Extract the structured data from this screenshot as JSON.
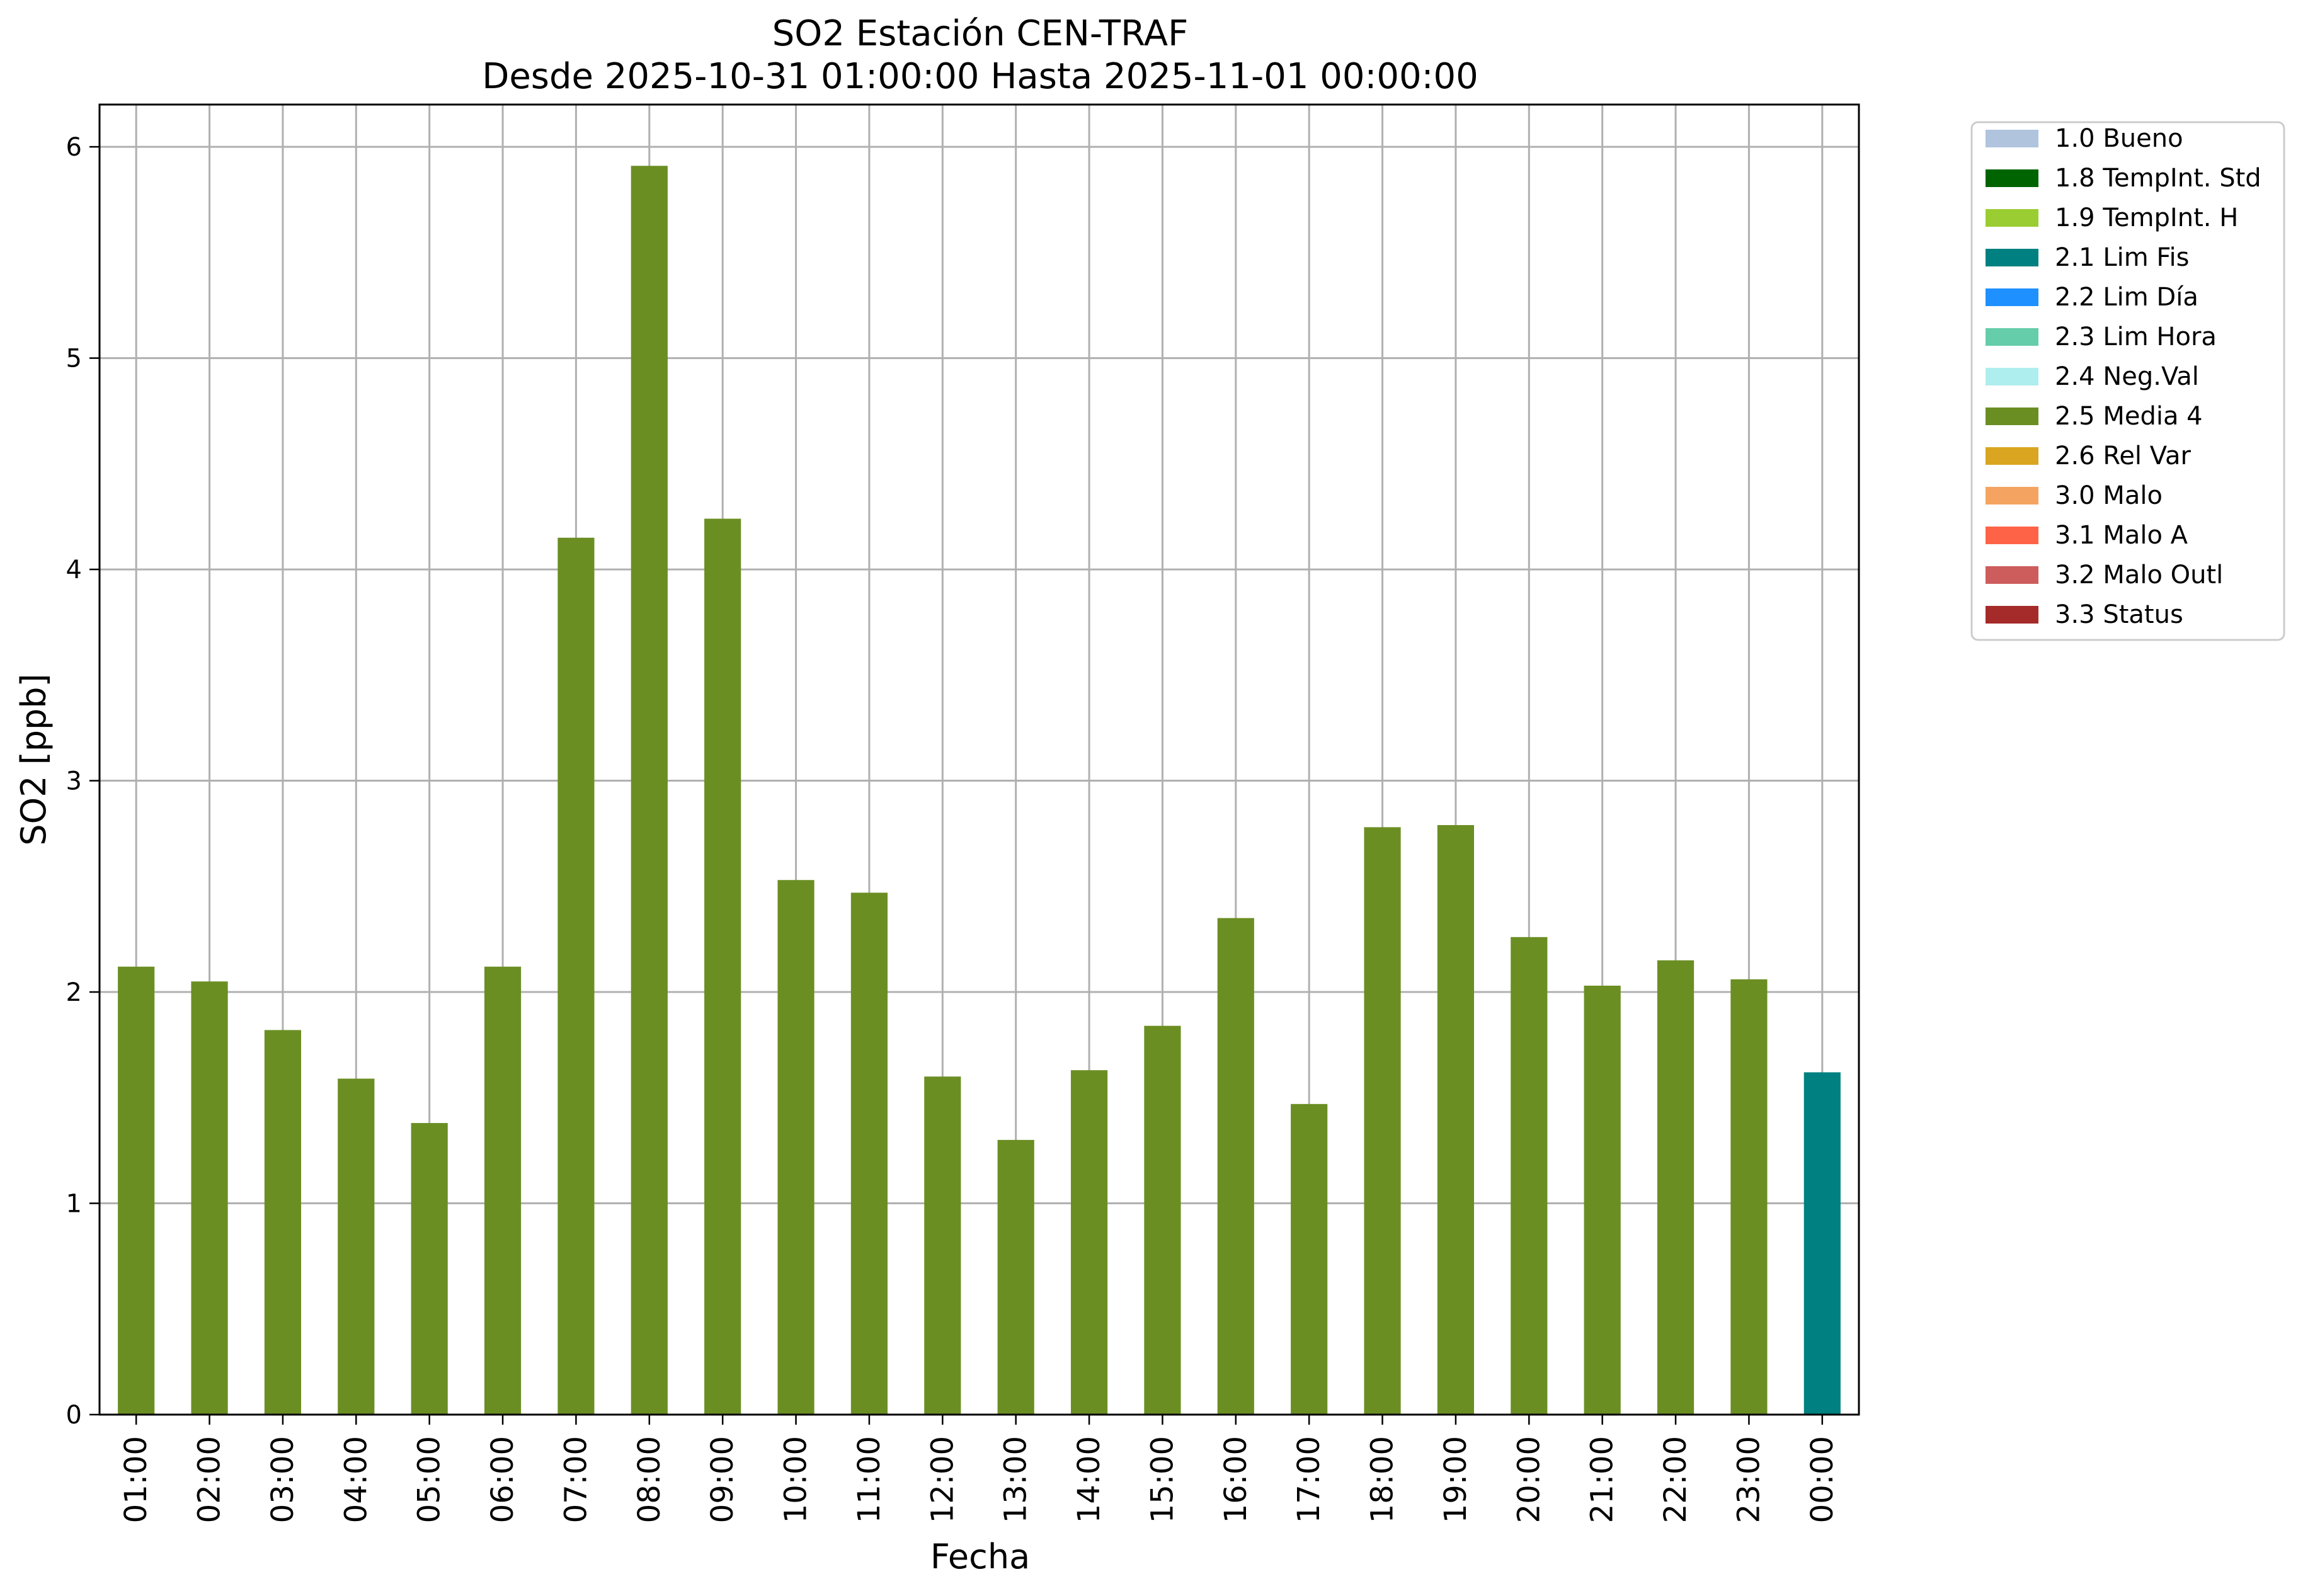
{
  "chart_data": {
    "type": "bar",
    "title": "SO2 Estación CEN-TRAF",
    "subtitle": "Desde 2025-10-31 01:00:00 Hasta 2025-11-01 00:00:00",
    "xlabel": "Fecha",
    "ylabel": "SO2 [ppb]",
    "ylim": [
      0,
      6.2
    ],
    "yticks": [
      0,
      1,
      2,
      3,
      4,
      5,
      6
    ],
    "grid": true,
    "legend_position": "outside-top-right",
    "categories": [
      "01:00",
      "02:00",
      "03:00",
      "04:00",
      "05:00",
      "06:00",
      "07:00",
      "08:00",
      "09:00",
      "10:00",
      "11:00",
      "12:00",
      "13:00",
      "14:00",
      "15:00",
      "16:00",
      "17:00",
      "18:00",
      "19:00",
      "20:00",
      "21:00",
      "22:00",
      "23:00",
      "00:00"
    ],
    "values": [
      2.12,
      2.05,
      1.82,
      1.59,
      1.38,
      2.12,
      4.15,
      5.91,
      4.24,
      2.53,
      2.47,
      1.6,
      1.3,
      1.63,
      1.84,
      2.35,
      1.47,
      2.78,
      2.79,
      2.26,
      2.03,
      2.15,
      2.06,
      1.62
    ],
    "flags": [
      "2.5 Media 4",
      "2.5 Media 4",
      "2.5 Media 4",
      "2.5 Media 4",
      "2.5 Media 4",
      "2.5 Media 4",
      "2.5 Media 4",
      "2.5 Media 4",
      "2.5 Media 4",
      "2.5 Media 4",
      "2.5 Media 4",
      "2.5 Media 4",
      "2.5 Media 4",
      "2.5 Media 4",
      "2.5 Media 4",
      "2.5 Media 4",
      "2.5 Media 4",
      "2.5 Media 4",
      "2.5 Media 4",
      "2.5 Media 4",
      "2.5 Media 4",
      "2.5 Media 4",
      "2.5 Media 4",
      "2.1 Lim Fis"
    ],
    "legend": [
      {
        "label": "1.0 Bueno",
        "color": "#b0c4de"
      },
      {
        "label": "1.8 TempInt. Std",
        "color": "#006400"
      },
      {
        "label": "1.9 TempInt. H",
        "color": "#9acd32"
      },
      {
        "label": "2.1 Lim Fis",
        "color": "#008080"
      },
      {
        "label": "2.2 Lim Día",
        "color": "#1e90ff"
      },
      {
        "label": "2.3 Lim Hora",
        "color": "#66cdaa"
      },
      {
        "label": "2.4 Neg.Val",
        "color": "#afeeee"
      },
      {
        "label": "2.5 Media 4",
        "color": "#6b8e23"
      },
      {
        "label": "2.6 Rel Var",
        "color": "#daa520"
      },
      {
        "label": "3.0 Malo",
        "color": "#f4a460"
      },
      {
        "label": "3.1 Malo A",
        "color": "#ff6347"
      },
      {
        "label": "3.2 Malo Outl",
        "color": "#cd5c5c"
      },
      {
        "label": "3.3 Status",
        "color": "#a52a2a"
      }
    ]
  }
}
